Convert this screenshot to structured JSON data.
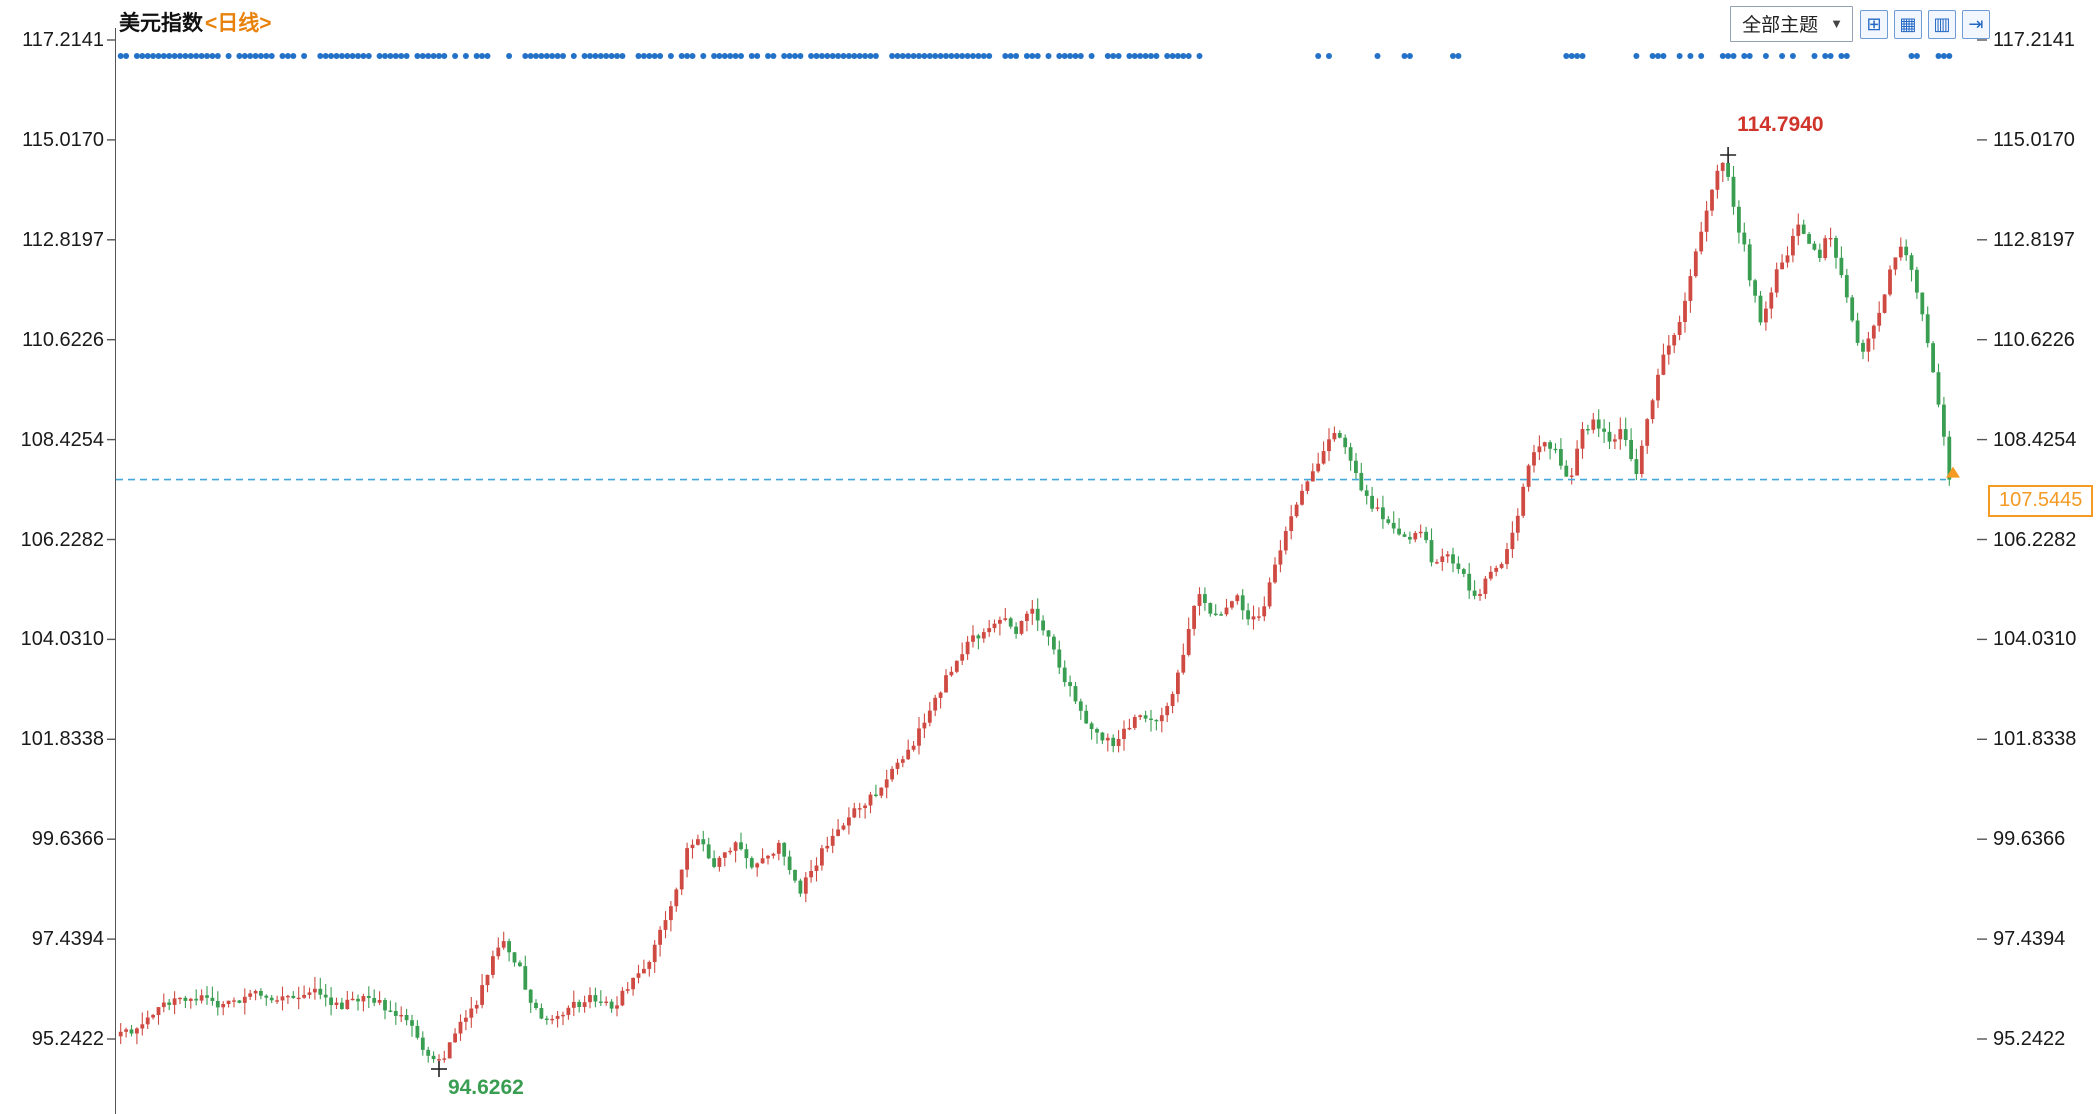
{
  "header": {
    "title": "美元指数",
    "period": "<日线>",
    "theme_button": "全部主题",
    "dropdown_arrow": "▼",
    "icon_buttons": [
      {
        "name": "crosshair-icon",
        "glyph": "⊞"
      },
      {
        "name": "grid-layout-icon",
        "glyph": "▦"
      },
      {
        "name": "split-panel-icon",
        "glyph": "▥"
      },
      {
        "name": "expand-right-icon",
        "glyph": "⇥"
      }
    ]
  },
  "chart_data": {
    "type": "candlestick",
    "instrument": "美元指数",
    "period": "日线",
    "title": "美元指数<日线>",
    "y_ticks": [
      "117.2141",
      "115.0170",
      "112.8197",
      "110.6226",
      "108.4254",
      "106.2282",
      "104.0310",
      "101.8338",
      "99.6366",
      "97.4394",
      "95.2422"
    ],
    "y_range": [
      95.2422,
      117.2141
    ],
    "grid": "off",
    "annotations": {
      "high": {
        "value": "114.7940",
        "price": 114.794
      },
      "low": {
        "value": "94.6262",
        "price": 94.6262
      },
      "last": {
        "value": "107.5445",
        "price": 107.5445
      }
    },
    "colors": {
      "up": "#cf4a42",
      "down": "#3a9e52",
      "dots": "#2472c8",
      "dashed_line": "#45a7dc",
      "last_label": "#f59a23",
      "high_text": "#d0352c",
      "low_text": "#3a9e52",
      "axis": "#555555"
    },
    "candle_count": 340,
    "trend_anchors": [
      [
        0.0,
        95.3
      ],
      [
        0.011,
        95.6
      ],
      [
        0.026,
        96.0
      ],
      [
        0.04,
        96.2
      ],
      [
        0.055,
        95.9
      ],
      [
        0.074,
        96.3
      ],
      [
        0.088,
        96.1
      ],
      [
        0.103,
        96.3
      ],
      [
        0.121,
        96.0
      ],
      [
        0.136,
        96.2
      ],
      [
        0.151,
        95.8
      ],
      [
        0.162,
        95.3
      ],
      [
        0.169,
        94.75
      ],
      [
        0.173,
        94.65
      ],
      [
        0.184,
        95.4
      ],
      [
        0.195,
        96.1
      ],
      [
        0.206,
        97.2
      ],
      [
        0.211,
        97.35
      ],
      [
        0.217,
        96.9
      ],
      [
        0.226,
        95.9
      ],
      [
        0.235,
        95.55
      ],
      [
        0.246,
        95.9
      ],
      [
        0.257,
        96.2
      ],
      [
        0.268,
        95.95
      ],
      [
        0.279,
        96.4
      ],
      [
        0.29,
        97.1
      ],
      [
        0.301,
        98.2
      ],
      [
        0.311,
        99.5
      ],
      [
        0.316,
        99.7
      ],
      [
        0.324,
        99.0
      ],
      [
        0.331,
        99.3
      ],
      [
        0.338,
        99.6
      ],
      [
        0.346,
        99.0
      ],
      [
        0.353,
        99.2
      ],
      [
        0.36,
        99.55
      ],
      [
        0.371,
        98.5
      ],
      [
        0.379,
        99.0
      ],
      [
        0.39,
        99.8
      ],
      [
        0.401,
        100.3
      ],
      [
        0.412,
        100.6
      ],
      [
        0.421,
        101.1
      ],
      [
        0.43,
        101.5
      ],
      [
        0.441,
        102.3
      ],
      [
        0.452,
        103.3
      ],
      [
        0.463,
        103.9
      ],
      [
        0.473,
        104.3
      ],
      [
        0.482,
        104.5
      ],
      [
        0.489,
        104.2
      ],
      [
        0.498,
        104.65
      ],
      [
        0.505,
        104.3
      ],
      [
        0.515,
        103.3
      ],
      [
        0.524,
        102.5
      ],
      [
        0.533,
        102.0
      ],
      [
        0.542,
        101.75
      ],
      [
        0.549,
        102.0
      ],
      [
        0.559,
        102.4
      ],
      [
        0.566,
        102.1
      ],
      [
        0.576,
        103.0
      ],
      [
        0.585,
        104.4
      ],
      [
        0.59,
        105.1
      ],
      [
        0.596,
        104.5
      ],
      [
        0.603,
        104.7
      ],
      [
        0.61,
        105.0
      ],
      [
        0.618,
        104.4
      ],
      [
        0.625,
        104.7
      ],
      [
        0.636,
        106.3
      ],
      [
        0.645,
        107.2
      ],
      [
        0.654,
        107.9
      ],
      [
        0.662,
        108.6
      ],
      [
        0.669,
        108.3
      ],
      [
        0.676,
        107.6
      ],
      [
        0.684,
        107.0
      ],
      [
        0.693,
        106.6
      ],
      [
        0.702,
        106.2
      ],
      [
        0.711,
        106.4
      ],
      [
        0.718,
        105.7
      ],
      [
        0.726,
        105.9
      ],
      [
        0.733,
        105.5
      ],
      [
        0.74,
        104.9
      ],
      [
        0.746,
        105.3
      ],
      [
        0.754,
        105.6
      ],
      [
        0.761,
        106.3
      ],
      [
        0.77,
        107.8
      ],
      [
        0.777,
        108.5
      ],
      [
        0.785,
        108.2
      ],
      [
        0.792,
        107.5
      ],
      [
        0.799,
        108.6
      ],
      [
        0.807,
        108.8
      ],
      [
        0.814,
        108.3
      ],
      [
        0.821,
        108.6
      ],
      [
        0.829,
        107.7
      ],
      [
        0.836,
        109.0
      ],
      [
        0.843,
        110.3
      ],
      [
        0.851,
        110.8
      ],
      [
        0.857,
        111.8
      ],
      [
        0.863,
        112.8
      ],
      [
        0.868,
        113.6
      ],
      [
        0.874,
        114.4
      ],
      [
        0.878,
        114.6
      ],
      [
        0.882,
        113.5
      ],
      [
        0.888,
        112.6
      ],
      [
        0.893,
        111.6
      ],
      [
        0.898,
        110.9
      ],
      [
        0.904,
        112.0
      ],
      [
        0.912,
        112.6
      ],
      [
        0.917,
        113.2
      ],
      [
        0.923,
        112.8
      ],
      [
        0.929,
        112.5
      ],
      [
        0.934,
        113.0
      ],
      [
        0.94,
        112.3
      ],
      [
        0.946,
        111.2
      ],
      [
        0.952,
        110.3
      ],
      [
        0.958,
        110.9
      ],
      [
        0.963,
        111.3
      ],
      [
        0.969,
        112.4
      ],
      [
        0.975,
        112.7
      ],
      [
        0.981,
        112.0
      ],
      [
        0.987,
        110.8
      ],
      [
        0.993,
        109.6
      ],
      [
        1.0,
        107.54
      ]
    ],
    "event_marker_segments": [
      [
        0.0,
        0.59,
        0.82
      ],
      [
        0.652,
        0.675,
        0.55
      ],
      [
        0.686,
        0.692,
        0.6
      ],
      [
        0.7,
        0.712,
        0.5
      ],
      [
        0.72,
        0.737,
        0.5
      ],
      [
        0.788,
        0.802,
        0.55
      ],
      [
        0.828,
        0.866,
        0.5
      ],
      [
        0.876,
        0.894,
        0.6
      ],
      [
        0.898,
        0.91,
        0.5
      ],
      [
        0.914,
        0.928,
        0.5
      ],
      [
        0.932,
        0.946,
        0.5
      ],
      [
        0.961,
        0.972,
        0.5
      ],
      [
        0.977,
        0.986,
        0.5
      ],
      [
        0.994,
        1.0,
        0.7
      ]
    ]
  }
}
